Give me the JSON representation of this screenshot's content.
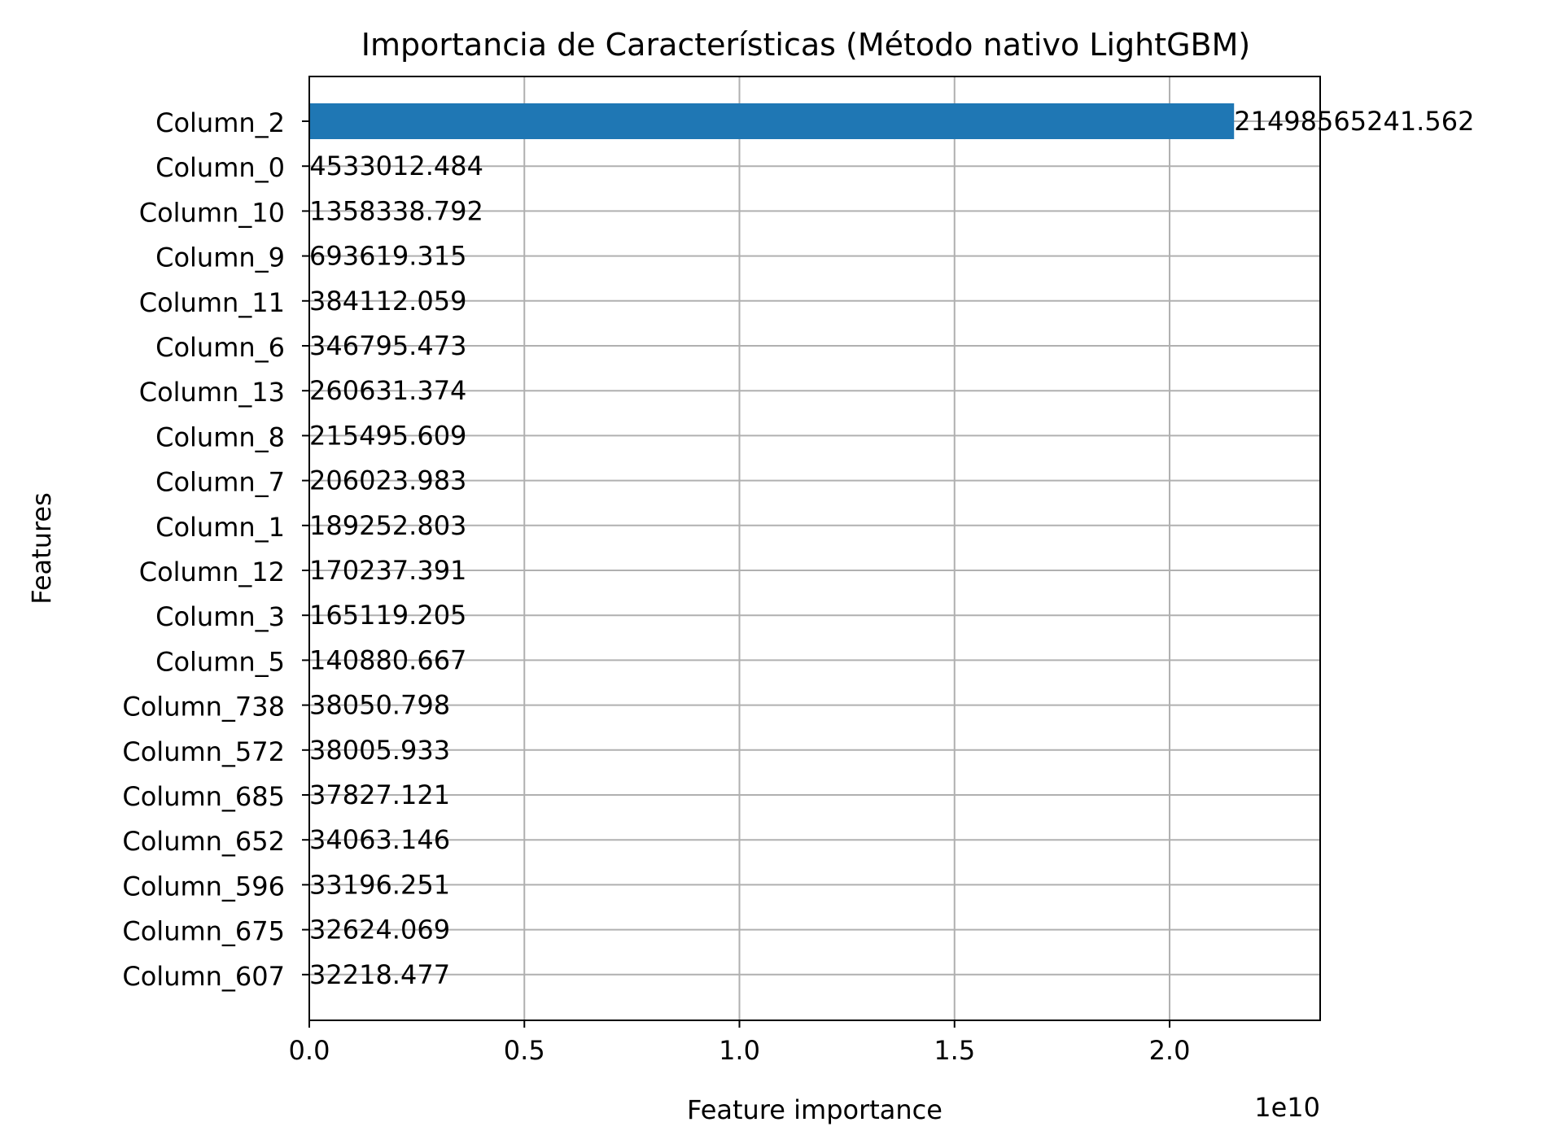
{
  "chart_data": {
    "type": "bar",
    "orientation": "horizontal",
    "title": "Importancia de Características (Método nativo LightGBM)",
    "xlabel": "Feature importance",
    "ylabel": "Features",
    "x_offset_label": "1e10",
    "x_multiplier": 10000000000,
    "xlim": [
      0,
      2.35
    ],
    "x_ticks": [
      0.0,
      0.5,
      1.0,
      1.5,
      2.0
    ],
    "x_tick_labels": [
      "0.0",
      "0.5",
      "1.0",
      "1.5",
      "2.0"
    ],
    "grid": true,
    "bar_color": "#1f77b4",
    "categories": [
      "Column_2",
      "Column_0",
      "Column_10",
      "Column_9",
      "Column_11",
      "Column_6",
      "Column_13",
      "Column_8",
      "Column_7",
      "Column_1",
      "Column_12",
      "Column_3",
      "Column_5",
      "Column_738",
      "Column_572",
      "Column_685",
      "Column_652",
      "Column_596",
      "Column_675",
      "Column_607"
    ],
    "values": [
      21498565241.562,
      4533012.484,
      1358338.792,
      693619.315,
      384112.059,
      346795.473,
      260631.374,
      215495.609,
      206023.983,
      189252.803,
      170237.391,
      165119.205,
      140880.667,
      38050.798,
      38005.933,
      37827.121,
      34063.146,
      33196.251,
      32624.069,
      32218.477
    ],
    "value_labels": [
      "21498565241.562",
      "4533012.484",
      "1358338.792",
      "693619.315",
      "384112.059",
      "346795.473",
      "260631.374",
      "215495.609",
      "206023.983",
      "189252.803",
      "170237.391",
      "165119.205",
      "140880.667",
      "38050.798",
      "38005.933",
      "37827.121",
      "34063.146",
      "33196.251",
      "32624.069",
      "32218.477"
    ]
  }
}
